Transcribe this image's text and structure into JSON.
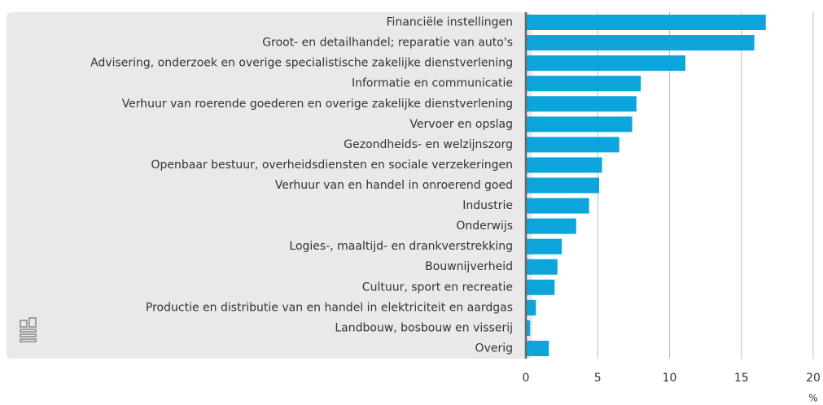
{
  "chart_data": {
    "type": "bar",
    "orientation": "horizontal",
    "categories": [
      "Financiële instellingen",
      "Groot- en detailhandel; reparatie van auto's",
      "Advisering, onderzoek en overige specialistische zakelijke dienstverlening",
      "Informatie en communicatie",
      "Verhuur van roerende goederen en overige zakelijke dienstverlening",
      "Vervoer en opslag",
      "Gezondheids- en welzijnszorg",
      "Openbaar bestuur, overheidsdiensten en sociale verzekeringen",
      "Verhuur van en handel in onroerend goed",
      "Industrie",
      "Onderwijs",
      "Logies-, maaltijd- en drankverstrekking",
      "Bouwnijverheid",
      "Cultuur, sport en recreatie",
      "Productie en distributie van en handel in elektriciteit en aardgas",
      "Landbouw, bosbouw en visserij",
      "Overig"
    ],
    "values": [
      16.7,
      15.9,
      11.1,
      8.0,
      7.7,
      7.4,
      6.5,
      5.3,
      5.1,
      4.4,
      3.5,
      2.5,
      2.2,
      2.0,
      0.7,
      0.3,
      1.6
    ],
    "color": "#0ba5dc",
    "xlabel": "%",
    "xlim": [
      0,
      20
    ],
    "xticks": [
      0,
      5,
      10,
      15,
      20
    ],
    "grid": true
  }
}
